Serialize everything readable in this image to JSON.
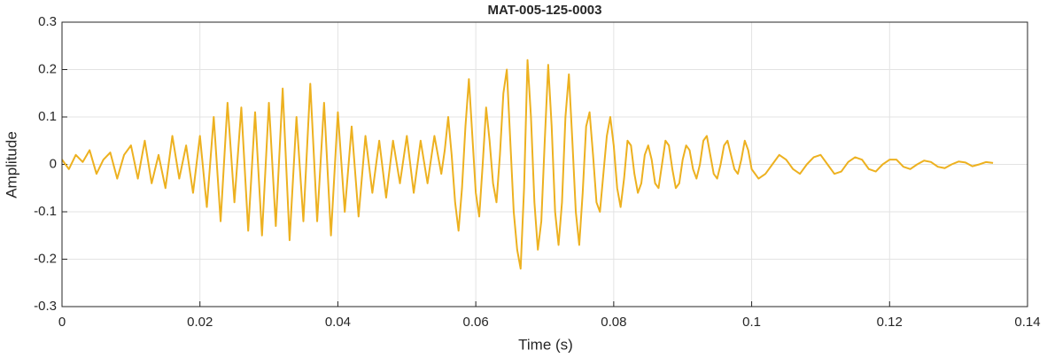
{
  "chart_data": {
    "type": "line",
    "title": "MAT-005-125-0003",
    "x_label": "Time (s)",
    "y_label": "Amplitude",
    "color": "#edb120",
    "grid": true,
    "xlim": [
      0,
      0.14
    ],
    "xticks": [
      0,
      0.02,
      0.04,
      0.06,
      0.08,
      0.1,
      0.12,
      0.14
    ],
    "ylim": [
      -0.3,
      0.3
    ],
    "yticks": [
      -0.3,
      -0.2,
      -0.1,
      0,
      0.1,
      0.2,
      0.3
    ],
    "x": [
      0,
      0.001,
      0.002,
      0.003,
      0.004,
      0.005,
      0.006,
      0.007,
      0.008,
      0.009,
      0.01,
      0.011,
      0.012,
      0.013,
      0.014,
      0.015,
      0.016,
      0.017,
      0.018,
      0.019,
      0.02,
      0.021,
      0.022,
      0.023,
      0.024,
      0.025,
      0.026,
      0.027,
      0.028,
      0.029,
      0.03,
      0.031,
      0.032,
      0.033,
      0.034,
      0.035,
      0.036,
      0.037,
      0.038,
      0.039,
      0.04,
      0.041,
      0.042,
      0.043,
      0.044,
      0.045,
      0.046,
      0.047,
      0.048,
      0.049,
      0.05,
      0.051,
      0.052,
      0.053,
      0.054,
      0.055,
      0.0555,
      0.056,
      0.0565,
      0.057,
      0.0575,
      0.058,
      0.0585,
      0.059,
      0.0595,
      0.06,
      0.0605,
      0.061,
      0.0615,
      0.062,
      0.0625,
      0.063,
      0.0635,
      0.064,
      0.0645,
      0.065,
      0.0655,
      0.066,
      0.0665,
      0.067,
      0.0675,
      0.068,
      0.0685,
      0.069,
      0.0695,
      0.07,
      0.0705,
      0.071,
      0.0715,
      0.072,
      0.0725,
      0.073,
      0.0735,
      0.074,
      0.0745,
      0.075,
      0.0755,
      0.076,
      0.0765,
      0.077,
      0.0775,
      0.078,
      0.0785,
      0.079,
      0.0795,
      0.08,
      0.0805,
      0.081,
      0.0815,
      0.082,
      0.0825,
      0.083,
      0.0835,
      0.084,
      0.0845,
      0.085,
      0.0855,
      0.086,
      0.0865,
      0.087,
      0.0875,
      0.088,
      0.0885,
      0.089,
      0.0895,
      0.09,
      0.0905,
      0.091,
      0.0915,
      0.092,
      0.0925,
      0.093,
      0.0935,
      0.094,
      0.0945,
      0.095,
      0.0955,
      0.096,
      0.0965,
      0.097,
      0.0975,
      0.098,
      0.0985,
      0.099,
      0.0995,
      0.1,
      0.101,
      0.102,
      0.103,
      0.104,
      0.105,
      0.106,
      0.107,
      0.108,
      0.109,
      0.11,
      0.111,
      0.112,
      0.113,
      0.114,
      0.115,
      0.116,
      0.117,
      0.118,
      0.119,
      0.12,
      0.121,
      0.122,
      0.123,
      0.124,
      0.125,
      0.126,
      0.127,
      0.128,
      0.129,
      0.13,
      0.131,
      0.132,
      0.133,
      0.134,
      0.135
    ],
    "values": [
      0.01,
      -0.01,
      0.02,
      0.005,
      0.03,
      -0.02,
      0.01,
      0.025,
      -0.03,
      0.02,
      0.04,
      -0.03,
      0.05,
      -0.04,
      0.02,
      -0.05,
      0.06,
      -0.03,
      0.04,
      -0.06,
      0.06,
      -0.09,
      0.1,
      -0.12,
      0.13,
      -0.08,
      0.12,
      -0.14,
      0.11,
      -0.15,
      0.13,
      -0.13,
      0.16,
      -0.16,
      0.1,
      -0.12,
      0.17,
      -0.12,
      0.13,
      -0.15,
      0.11,
      -0.1,
      0.08,
      -0.11,
      0.06,
      -0.06,
      0.05,
      -0.07,
      0.05,
      -0.04,
      0.06,
      -0.06,
      0.05,
      -0.04,
      0.06,
      -0.02,
      0.03,
      0.1,
      0.02,
      -0.08,
      -0.14,
      -0.05,
      0.08,
      0.18,
      0.06,
      -0.06,
      -0.11,
      0,
      0.12,
      0.05,
      -0.04,
      -0.08,
      0.02,
      0.15,
      0.2,
      0.05,
      -0.1,
      -0.18,
      -0.22,
      -0.05,
      0.22,
      0.1,
      -0.08,
      -0.18,
      -0.12,
      0.05,
      0.21,
      0.08,
      -0.1,
      -0.17,
      -0.08,
      0.1,
      0.19,
      0.05,
      -0.1,
      -0.17,
      -0.06,
      0.08,
      0.11,
      0.02,
      -0.08,
      -0.1,
      -0.02,
      0.06,
      0.1,
      0.04,
      -0.05,
      -0.09,
      -0.03,
      0.05,
      0.04,
      -0.02,
      -0.06,
      -0.04,
      0.02,
      0.04,
      0.01,
      -0.04,
      -0.05,
      0,
      0.05,
      0.04,
      -0.01,
      -0.05,
      -0.04,
      0.01,
      0.04,
      0.03,
      -0.01,
      -0.03,
      0,
      0.05,
      0.06,
      0.02,
      -0.02,
      -0.03,
      0,
      0.04,
      0.05,
      0.02,
      -0.01,
      -0.02,
      0.01,
      0.05,
      0.03,
      -0.01,
      -0.03,
      -0.02,
      0,
      0.02,
      0.01,
      -0.01,
      -0.02,
      0,
      0.015,
      0.02,
      0,
      -0.02,
      -0.015,
      0.005,
      0.015,
      0.01,
      -0.01,
      -0.015,
      0,
      0.01,
      0.01,
      -0.005,
      -0.01,
      0,
      0.008,
      0.005,
      -0.005,
      -0.008,
      0,
      0.006,
      0.004,
      -0.004,
      0,
      0.005,
      0.003
    ]
  }
}
